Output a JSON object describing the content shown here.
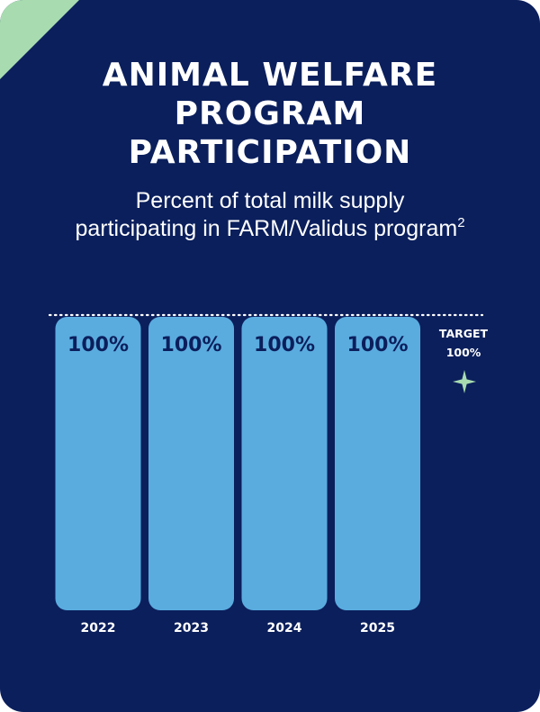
{
  "card": {
    "title_lines": [
      "ANIMAL WELFARE",
      "PROGRAM",
      "PARTICIPATION"
    ],
    "subtitle_line1": "Percent of total milk supply",
    "subtitle_line2": "participating in FARM/Validus program",
    "subtitle_footnote": "2"
  },
  "colors": {
    "background": "#0b1f5c",
    "bar": "#5aacdf",
    "bar_label": "#0b1f5c",
    "text": "#ffffff",
    "corner_accent": "#a8dcb0",
    "target_star": "#a8dcb0"
  },
  "chart_data": {
    "type": "bar",
    "categories": [
      "2022",
      "2023",
      "2024",
      "2025"
    ],
    "values": [
      100,
      100,
      100,
      100
    ],
    "data_labels": [
      "100%",
      "100%",
      "100%",
      "100%"
    ],
    "ylim": [
      0,
      100
    ],
    "target": {
      "value": 100,
      "label_line1": "TARGET",
      "label_line2": "100%"
    },
    "grid": false
  }
}
